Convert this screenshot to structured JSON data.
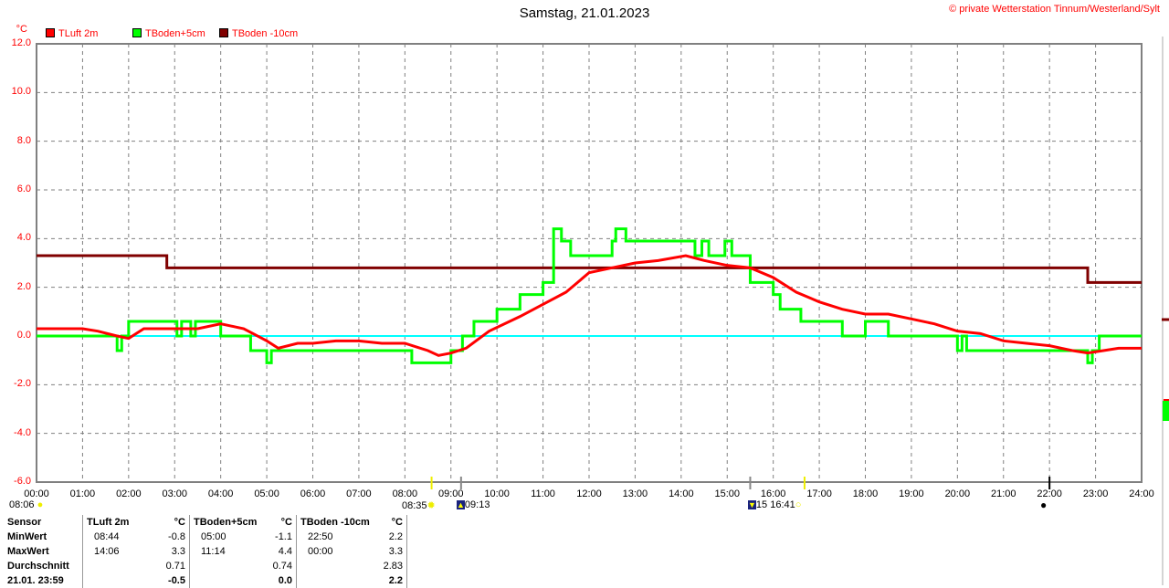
{
  "header": {
    "title": "Samstag, 21.01.2023",
    "copyright": "© private Wetterstation Tinnum/Westerland/Sylt"
  },
  "colors": {
    "tluft": "#ff0000",
    "tboden5": "#00ff00",
    "tboden10": "#800000",
    "zero_line": "#00ffff",
    "grid": "#808080"
  },
  "chart_data": {
    "type": "line",
    "title": "Samstag, 21.01.2023",
    "ylabel": "°C",
    "ylim": [
      -6,
      12
    ],
    "xlim": [
      0,
      24
    ],
    "grid": true,
    "legend_placement": "top-left",
    "y_ticks": [
      "12.0",
      "10.0",
      "8.0",
      "6.0",
      "4.0",
      "2.0",
      "0.0",
      "-2.0",
      "-4.0",
      "-6.0"
    ],
    "x_ticks": [
      "00:00",
      "01:00",
      "02:00",
      "03:00",
      "04:00",
      "05:00",
      "06:00",
      "07:00",
      "08:00",
      "09:00",
      "10:00",
      "11:00",
      "12:00",
      "13:00",
      "14:00",
      "15:00",
      "16:00",
      "17:00",
      "18:00",
      "19:00",
      "20:00",
      "21:00",
      "22:00",
      "23:00",
      "24:00"
    ],
    "series": [
      {
        "name": "TLuft 2m",
        "color": "#ff0000",
        "step": false,
        "x": [
          0,
          1,
          1.33,
          1.75,
          2,
          2.33,
          3,
          3.5,
          4,
          4.5,
          5,
          5.25,
          5.67,
          6,
          6.5,
          7,
          7.5,
          8,
          8.5,
          8.73,
          9,
          9.33,
          9.83,
          10.5,
          11,
          11.5,
          12,
          12.5,
          13,
          13.5,
          14.1,
          14.5,
          15,
          15.5,
          16,
          16.5,
          17,
          17.5,
          18,
          18.5,
          19,
          19.5,
          20,
          20.5,
          21,
          21.5,
          22,
          22.5,
          22.83,
          23.17,
          23.5,
          24
        ],
        "y": [
          0.3,
          0.3,
          0.2,
          0.0,
          -0.1,
          0.3,
          0.3,
          0.3,
          0.5,
          0.3,
          -0.2,
          -0.5,
          -0.3,
          -0.3,
          -0.2,
          -0.2,
          -0.3,
          -0.3,
          -0.6,
          -0.8,
          -0.7,
          -0.5,
          0.2,
          0.8,
          1.3,
          1.8,
          2.6,
          2.8,
          3.0,
          3.1,
          3.3,
          3.1,
          2.9,
          2.8,
          2.4,
          1.8,
          1.4,
          1.1,
          0.9,
          0.9,
          0.7,
          0.5,
          0.2,
          0.1,
          -0.2,
          -0.3,
          -0.4,
          -0.6,
          -0.7,
          -0.6,
          -0.5,
          -0.5
        ]
      },
      {
        "name": "TBoden+5cm",
        "color": "#00ff00",
        "step": true,
        "x": [
          0,
          1.75,
          1.85,
          2,
          3.05,
          3.15,
          3.35,
          3.45,
          4,
          4.65,
          5,
          5.1,
          8.15,
          9,
          9.25,
          9.5,
          10,
          10.5,
          11,
          11.23,
          11.4,
          11.6,
          12.5,
          12.58,
          12.8,
          14.3,
          14.45,
          14.6,
          14.95,
          15.1,
          15.5,
          16,
          16.15,
          16.6,
          17.5,
          18,
          18.5,
          20,
          20.1,
          20.2,
          20.6,
          22.83,
          22.93,
          23.08,
          24
        ],
        "y": [
          0.0,
          -0.6,
          0.0,
          0.6,
          0.0,
          0.6,
          0.0,
          0.6,
          0.0,
          -0.6,
          -1.1,
          -0.6,
          -1.1,
          -0.6,
          0.0,
          0.6,
          1.1,
          1.7,
          2.2,
          4.4,
          3.9,
          3.3,
          3.9,
          4.4,
          3.9,
          3.3,
          3.9,
          3.3,
          3.9,
          3.3,
          2.2,
          1.7,
          1.1,
          0.6,
          0.0,
          0.6,
          0.0,
          -0.6,
          0.0,
          -0.6,
          -0.6,
          -1.1,
          -0.6,
          0.0,
          0.0
        ]
      },
      {
        "name": "TBoden -10cm",
        "color": "#800000",
        "step": true,
        "x": [
          0,
          2.83,
          22.83,
          24
        ],
        "y": [
          3.3,
          2.8,
          2.2,
          2.2
        ]
      }
    ]
  },
  "astro": {
    "moon_left": "08:06",
    "sunrise": "08:35",
    "moonrise": "09:13",
    "moonset": "15",
    "sunset": "16:41"
  },
  "stats": {
    "headers": [
      "Sensor",
      "TLuft 2m",
      "°C",
      "TBoden+5cm",
      "°C",
      "TBoden -10cm",
      "°C"
    ],
    "rows": [
      {
        "label": "MinWert",
        "c": [
          "08:44",
          "-0.8",
          "05:00",
          "-1.1",
          "22:50",
          "2.2"
        ]
      },
      {
        "label": "MaxWert",
        "c": [
          "14:06",
          "3.3",
          "11:14",
          "4.4",
          "00:00",
          "3.3"
        ]
      },
      {
        "label": "Durchschnitt",
        "c": [
          "",
          "0.71",
          "",
          "0.74",
          "",
          "2.83"
        ]
      },
      {
        "label": "21.01. 23:59",
        "c": [
          "",
          "-0.5",
          "",
          "0.0",
          "",
          "2.2"
        ]
      }
    ]
  }
}
